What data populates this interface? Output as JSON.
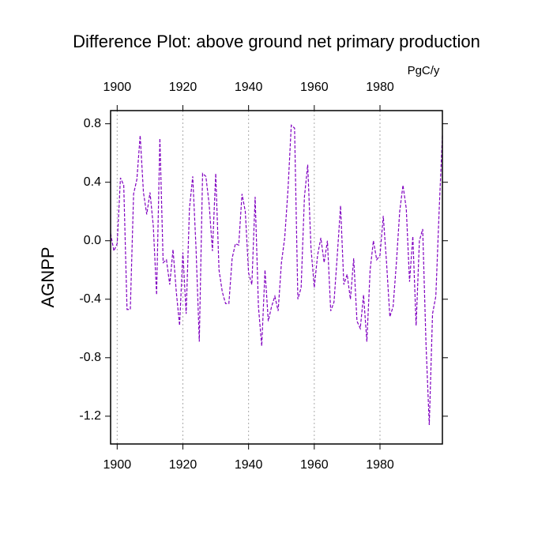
{
  "chart_data": {
    "type": "line",
    "title": "Difference Plot: above ground net primary production",
    "units_label": "PgC/y",
    "y_label": "AGNPP",
    "x": [
      1898,
      1899,
      1900,
      1901,
      1902,
      1903,
      1904,
      1905,
      1906,
      1907,
      1908,
      1909,
      1910,
      1911,
      1912,
      1913,
      1914,
      1915,
      1916,
      1917,
      1918,
      1919,
      1920,
      1921,
      1922,
      1923,
      1924,
      1925,
      1926,
      1927,
      1928,
      1929,
      1930,
      1931,
      1932,
      1933,
      1934,
      1935,
      1936,
      1937,
      1938,
      1939,
      1940,
      1941,
      1942,
      1943,
      1944,
      1945,
      1946,
      1947,
      1948,
      1949,
      1950,
      1951,
      1952,
      1953,
      1954,
      1955,
      1956,
      1957,
      1958,
      1959,
      1960,
      1961,
      1962,
      1963,
      1964,
      1965,
      1966,
      1967,
      1968,
      1969,
      1970,
      1971,
      1972,
      1973,
      1974,
      1975,
      1976,
      1977,
      1978,
      1979,
      1980,
      1981,
      1982,
      1983,
      1984,
      1985,
      1986,
      1987,
      1988,
      1989,
      1990,
      1991,
      1992,
      1993,
      1994,
      1995,
      1996,
      1997,
      1998,
      1999
    ],
    "values": [
      0.05,
      -0.07,
      -0.02,
      0.43,
      0.38,
      -0.47,
      -0.47,
      0.32,
      0.42,
      0.72,
      0.33,
      0.18,
      0.33,
      0.1,
      -0.37,
      0.7,
      -0.15,
      -0.13,
      -0.3,
      -0.06,
      -0.35,
      -0.58,
      -0.08,
      -0.5,
      0.22,
      0.44,
      -0.05,
      -0.69,
      0.46,
      0.44,
      0.25,
      -0.07,
      0.46,
      -0.2,
      -0.35,
      -0.43,
      -0.43,
      -0.12,
      -0.02,
      -0.03,
      0.32,
      0.2,
      -0.22,
      -0.3,
      0.3,
      -0.45,
      -0.72,
      -0.2,
      -0.55,
      -0.45,
      -0.38,
      -0.48,
      -0.15,
      0.02,
      0.35,
      0.79,
      0.77,
      -0.4,
      -0.32,
      0.3,
      0.52,
      -0.05,
      -0.32,
      -0.1,
      0.02,
      -0.15,
      0.0,
      -0.48,
      -0.42,
      -0.1,
      0.24,
      -0.3,
      -0.23,
      -0.4,
      -0.12,
      -0.55,
      -0.6,
      -0.37,
      -0.69,
      -0.2,
      0.0,
      -0.13,
      -0.1,
      0.17,
      -0.15,
      -0.52,
      -0.45,
      -0.15,
      0.2,
      0.38,
      0.22,
      -0.28,
      0.03,
      -0.58,
      0.0,
      0.08,
      -0.7,
      -1.26,
      -0.5,
      -0.38,
      0.2,
      0.72
    ],
    "color": "#8000c0",
    "dashed": true,
    "xlim": [
      1898,
      1999
    ],
    "xticks": [
      1900,
      1920,
      1940,
      1960,
      1980
    ],
    "xtick_color_bottom": "#ff0000",
    "xtick_color_top": "#0000ff",
    "ylim": [
      -1.39,
      0.89
    ],
    "yticks": [
      0.8,
      0.4,
      {
        "value": 0,
        "label": "0.0"
      },
      -0.4,
      -0.8,
      -1.2
    ],
    "grid": true
  }
}
